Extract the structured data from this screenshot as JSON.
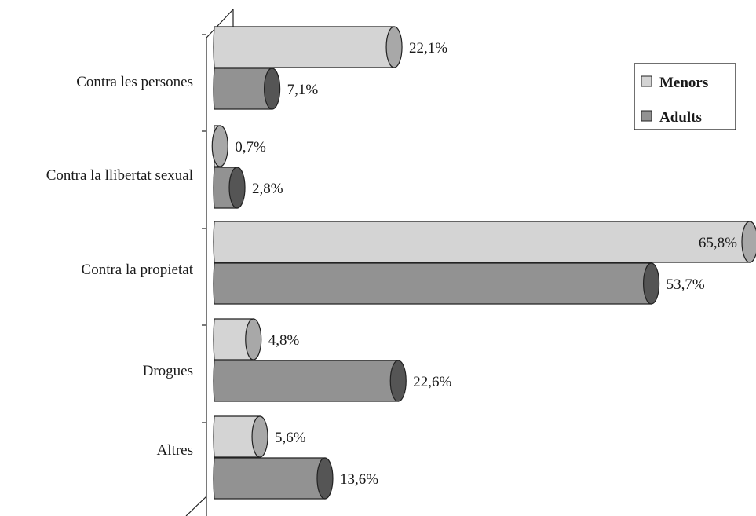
{
  "chart_data": {
    "type": "bar",
    "orientation": "horizontal",
    "style": "3d-cylinder",
    "categories": [
      "Contra les persones",
      "Contra la llibertat sexual",
      "Contra la propietat",
      "Drogues",
      "Altres"
    ],
    "series": [
      {
        "name": "Menors",
        "values": [
          22.1,
          0.7,
          65.8,
          4.8,
          5.6
        ],
        "labels": [
          "22,1%",
          "0,7%",
          "65,8%",
          "4,8%",
          "5,6%"
        ]
      },
      {
        "name": "Adults",
        "values": [
          7.1,
          2.8,
          53.7,
          22.6,
          13.6
        ],
        "labels": [
          "7,1%",
          "2,8%",
          "53,7%",
          "22,6%",
          "13,6%"
        ]
      }
    ],
    "legend": {
      "position": "top-right",
      "entries": [
        "Menors",
        "Adults"
      ]
    },
    "colors": {
      "Menors": {
        "body": "#d4d4d4",
        "cap": "#a8a8a8"
      },
      "Adults": {
        "body": "#929292",
        "cap": "#555555"
      }
    },
    "grid": false,
    "title": "",
    "xlabel": "",
    "ylabel": ""
  }
}
